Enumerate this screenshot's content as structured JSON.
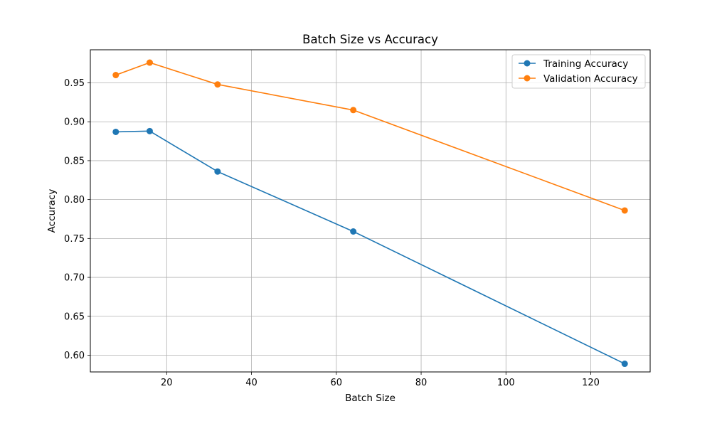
{
  "chart_data": {
    "type": "line",
    "title": "Batch Size vs Accuracy",
    "xlabel": "Batch Size",
    "ylabel": "Accuracy",
    "x": [
      8,
      16,
      32,
      64,
      128
    ],
    "series": [
      {
        "name": "Training Accuracy",
        "color": "#1f77b4",
        "marker": "circle",
        "values": [
          0.887,
          0.888,
          0.836,
          0.759,
          0.589
        ]
      },
      {
        "name": "Validation Accuracy",
        "color": "#ff7f0e",
        "marker": "circle",
        "values": [
          0.96,
          0.976,
          0.948,
          0.915,
          0.786
        ]
      }
    ],
    "xlim": [
      2,
      134
    ],
    "ylim": [
      0.5785,
      0.9925
    ],
    "xticks": [
      20,
      40,
      60,
      80,
      100,
      120
    ],
    "xtick_labels": [
      "20",
      "40",
      "60",
      "80",
      "100",
      "120"
    ],
    "yticks": [
      0.6,
      0.65,
      0.7,
      0.75,
      0.8,
      0.85,
      0.9,
      0.95
    ],
    "ytick_labels": [
      "0.60",
      "0.65",
      "0.70",
      "0.75",
      "0.80",
      "0.85",
      "0.90",
      "0.95"
    ],
    "grid": true,
    "legend_position": "upper right"
  }
}
